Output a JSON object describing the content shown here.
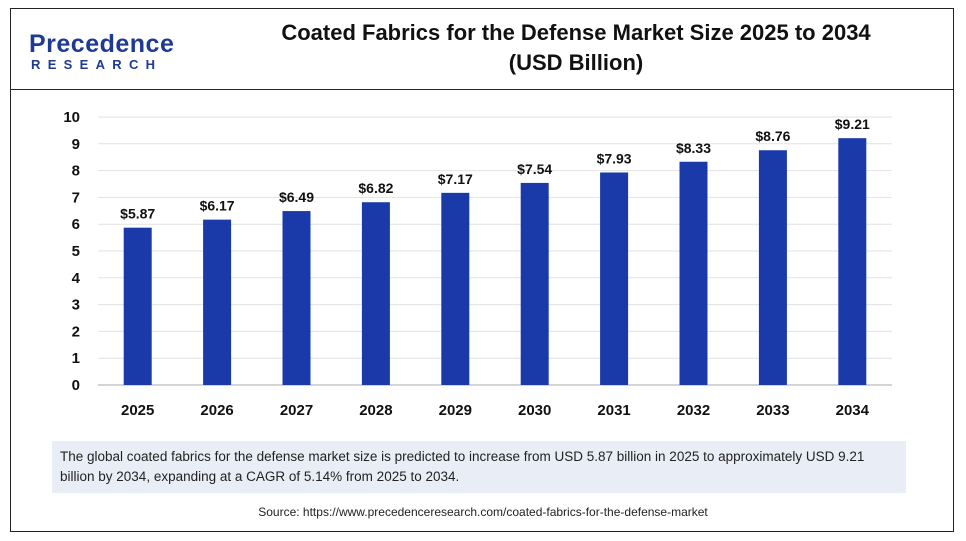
{
  "brand": {
    "logo_top": "Precedence",
    "logo_bottom": "RESEARCH"
  },
  "header": {
    "title_line1": "Coated Fabrics for the Defense Market Size 2025 to 2034",
    "title_line2": "(USD Billion)"
  },
  "chart_data": {
    "type": "bar",
    "title": "Coated Fabrics for the Defense Market Size 2025 to 2034 (USD Billion)",
    "categories": [
      "2025",
      "2026",
      "2027",
      "2028",
      "2029",
      "2030",
      "2031",
      "2032",
      "2033",
      "2034"
    ],
    "values": [
      5.87,
      6.17,
      6.49,
      6.82,
      7.17,
      7.54,
      7.93,
      8.33,
      8.76,
      9.21
    ],
    "data_labels": [
      "$5.87",
      "$6.17",
      "$6.49",
      "$6.82",
      "$7.17",
      "$7.54",
      "$7.93",
      "$8.33",
      "$8.76",
      "$9.21"
    ],
    "xlabel": "",
    "ylabel": "",
    "ylim": [
      0,
      10
    ],
    "yticks": [
      0,
      1,
      2,
      3,
      4,
      5,
      6,
      7,
      8,
      9,
      10
    ],
    "grid": true,
    "bar_color": "#1a3aaa"
  },
  "caption": "The global coated fabrics for the defense market size is predicted to increase from USD 5.87 billion in 2025 to approximately USD 9.21 billion by 2034, expanding at a CAGR of 5.14% from 2025 to 2034.",
  "source": "Source: https://www.precedenceresearch.com/coated-fabrics-for-the-defense-market"
}
